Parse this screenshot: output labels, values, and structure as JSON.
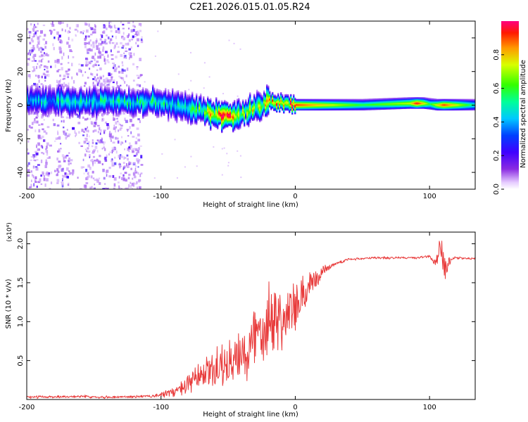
{
  "figure_title": "C2E1.2026.015.01.05.R24",
  "colors": {
    "snr_line": "#e83a3a",
    "axis": "#000000",
    "background": "#ffffff"
  },
  "chart_data": [
    {
      "type": "heatmap",
      "title": "C2E1.2026.015.01.05.R24",
      "xlabel": "Height of straight line (km)",
      "ylabel": "Frequency (Hz)",
      "xlim": [
        -200,
        134
      ],
      "ylim": [
        -50,
        50
      ],
      "x_ticks": [
        -200,
        -100,
        0,
        100
      ],
      "y_ticks": [
        -40,
        -20,
        0,
        20,
        40
      ],
      "colorbar": {
        "label": "Normalized spectral amplitude",
        "range": [
          0,
          1
        ],
        "ticks": [
          0.0,
          0.2,
          0.4,
          0.6,
          0.8
        ],
        "colormap": "rainbow (white/violet → red)"
      },
      "ridge_center_hz": {
        "x_km": [
          -200,
          -150,
          -100,
          -80,
          -60,
          -50,
          -40,
          -30,
          -20,
          -10,
          0,
          50,
          85,
          95,
          105,
          134
        ],
        "freq_hz": [
          2,
          2,
          2,
          -2,
          -5,
          -7,
          -5,
          -2,
          2,
          1,
          0,
          0,
          1,
          1,
          0,
          0
        ]
      },
      "peak_amplitude": {
        "x_km": [
          -200,
          -150,
          -100,
          -80,
          -60,
          -50,
          -40,
          -20,
          -10,
          0,
          50,
          85,
          90,
          100,
          110,
          134
        ],
        "value": [
          0.45,
          0.5,
          0.55,
          0.5,
          0.85,
          1.0,
          0.7,
          0.8,
          0.9,
          0.95,
          0.6,
          0.75,
          1.0,
          0.6,
          0.95,
          0.5
        ]
      },
      "scatter_region_km": [
        -200,
        -115
      ],
      "scatter_frequency_span_hz": [
        -50,
        50
      ]
    },
    {
      "type": "line",
      "title": "",
      "xlabel": "Height of straight line (km)",
      "ylabel": "SNR (10 * v/v)",
      "y_multiplier": "(x10⁴)",
      "xlim": [
        -200,
        134
      ],
      "ylim": [
        0,
        2.15
      ],
      "x_ticks": [
        -200,
        -100,
        0,
        100
      ],
      "y_ticks": [
        0.5,
        1.0,
        1.5,
        2.0
      ],
      "series": [
        {
          "name": "SNR",
          "x": [
            -200,
            -160,
            -140,
            -110,
            -100,
            -90,
            -80,
            -70,
            -60,
            -50,
            -40,
            -30,
            -20,
            -10,
            0,
            10,
            20,
            30,
            40,
            60,
            80,
            90,
            100,
            104,
            108,
            112,
            116,
            120,
            134
          ],
          "y": [
            0.03,
            0.04,
            0.03,
            0.04,
            0.06,
            0.1,
            0.18,
            0.3,
            0.4,
            0.45,
            0.5,
            0.8,
            1.1,
            1.05,
            1.15,
            1.4,
            1.65,
            1.75,
            1.8,
            1.82,
            1.82,
            1.82,
            1.84,
            1.75,
            1.95,
            1.65,
            1.8,
            1.82,
            1.81
          ],
          "noise_amplitude": [
            0.02,
            0.02,
            0.02,
            0.02,
            0.04,
            0.08,
            0.15,
            0.25,
            0.3,
            0.35,
            0.45,
            0.55,
            0.65,
            0.5,
            0.4,
            0.25,
            0.08,
            0.03,
            0.02,
            0.02,
            0.02,
            0.02,
            0.02,
            0.05,
            0.25,
            0.2,
            0.03,
            0.02,
            0.02
          ]
        }
      ]
    }
  ]
}
